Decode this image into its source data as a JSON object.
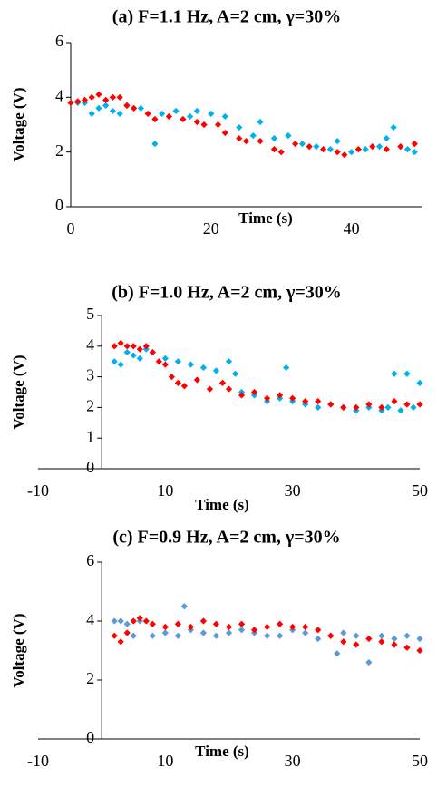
{
  "chart_data": [
    {
      "type": "scatter",
      "title": "(a) F=1.1 Hz, A=2 cm, γ=30%",
      "x_label": "Time (s)",
      "y_label": "Voltage (V)",
      "xlim": [
        0,
        50
      ],
      "xticks": [
        0,
        20,
        40
      ],
      "ylim": [
        0,
        6
      ],
      "yticks": [
        0,
        2,
        4,
        6
      ],
      "series": [
        {
          "color": "#00b0f0",
          "x": [
            1,
            2,
            3,
            4,
            5,
            6,
            7,
            8,
            10,
            12,
            13,
            15,
            17,
            18,
            20,
            22,
            24,
            26,
            27,
            29,
            31,
            33,
            35,
            37,
            38,
            40,
            42,
            44,
            45,
            46,
            48,
            49
          ],
          "values": [
            3.8,
            3.8,
            3.4,
            3.6,
            3.7,
            3.5,
            3.4,
            3.7,
            3.6,
            2.3,
            3.4,
            3.5,
            3.3,
            3.5,
            3.4,
            3.3,
            2.9,
            2.6,
            3.1,
            2.5,
            2.6,
            2.3,
            2.2,
            2.1,
            2.4,
            2.0,
            2.1,
            2.2,
            2.5,
            2.9,
            2.1,
            2.0
          ]
        },
        {
          "color": "#ff0000",
          "x": [
            0,
            1,
            2,
            3,
            4,
            5,
            6,
            7,
            8,
            9,
            11,
            12,
            14,
            16,
            18,
            19,
            21,
            22,
            24,
            25,
            27,
            29,
            30,
            32,
            34,
            36,
            38,
            39,
            41,
            43,
            45,
            47,
            49
          ],
          "values": [
            3.8,
            3.85,
            3.9,
            4.0,
            4.1,
            3.9,
            4.0,
            4.0,
            3.7,
            3.6,
            3.4,
            3.2,
            3.3,
            3.2,
            3.1,
            3.0,
            3.0,
            2.7,
            2.5,
            2.4,
            2.4,
            2.1,
            2.0,
            2.3,
            2.2,
            2.1,
            2.0,
            1.9,
            2.1,
            2.2,
            2.1,
            2.2,
            2.3
          ]
        }
      ]
    },
    {
      "type": "scatter",
      "title": "(b) F=1.0 Hz, A=2 cm, γ=30%",
      "x_label": "Time (s)",
      "y_label": "Voltage (V)",
      "xlim": [
        -10,
        50
      ],
      "xticks": [
        -10,
        10,
        30,
        50
      ],
      "ylim": [
        0,
        5
      ],
      "yticks": [
        0,
        1,
        2,
        3,
        4,
        5
      ],
      "series": [
        {
          "color": "#00b0f0",
          "x": [
            2,
            3,
            4,
            5,
            6,
            7,
            8,
            10,
            12,
            14,
            16,
            18,
            20,
            21,
            22,
            24,
            26,
            28,
            29,
            30,
            32,
            34,
            36,
            38,
            40,
            42,
            44,
            45,
            46,
            47,
            48,
            49,
            50
          ],
          "values": [
            3.5,
            3.4,
            3.8,
            3.7,
            3.6,
            3.9,
            3.8,
            3.6,
            3.5,
            3.4,
            3.3,
            3.2,
            3.5,
            3.1,
            2.5,
            2.4,
            2.2,
            2.3,
            3.3,
            2.2,
            2.1,
            2.0,
            2.1,
            2.0,
            1.9,
            2.0,
            1.9,
            2.0,
            3.1,
            1.9,
            3.1,
            2.0,
            2.8
          ]
        },
        {
          "color": "#ff0000",
          "x": [
            2,
            3,
            4,
            5,
            6,
            7,
            8,
            9,
            10,
            11,
            12,
            13,
            15,
            17,
            19,
            20,
            22,
            24,
            26,
            28,
            30,
            32,
            34,
            36,
            38,
            40,
            42,
            44,
            46,
            48,
            50
          ],
          "values": [
            4.0,
            4.1,
            4.0,
            4.0,
            3.9,
            4.0,
            3.8,
            3.5,
            3.4,
            3.0,
            2.8,
            2.7,
            2.9,
            2.6,
            2.8,
            2.6,
            2.4,
            2.5,
            2.3,
            2.4,
            2.3,
            2.2,
            2.2,
            2.1,
            2.0,
            2.0,
            2.1,
            2.0,
            2.2,
            2.1,
            2.1
          ]
        }
      ]
    },
    {
      "type": "scatter",
      "title": "(c) F=0.9 Hz, A=2 cm, γ=30%",
      "x_label": "Time (s)",
      "y_label": "Voltage (V)",
      "xlim": [
        -10,
        50
      ],
      "xticks": [
        -10,
        10,
        30,
        50
      ],
      "ylim": [
        0,
        6
      ],
      "yticks": [
        0,
        2,
        4,
        6
      ],
      "series": [
        {
          "color": "#5b9bd5",
          "x": [
            2,
            3,
            4,
            5,
            6,
            8,
            10,
            12,
            13,
            14,
            16,
            18,
            20,
            22,
            24,
            26,
            28,
            30,
            32,
            34,
            36,
            37,
            38,
            40,
            42,
            44,
            46,
            48,
            50
          ],
          "values": [
            4.0,
            4.0,
            3.9,
            3.5,
            4.0,
            3.5,
            3.6,
            3.5,
            4.5,
            3.7,
            3.6,
            3.5,
            3.6,
            3.7,
            3.6,
            3.5,
            3.5,
            3.7,
            3.6,
            3.4,
            3.5,
            2.9,
            3.6,
            3.5,
            2.6,
            3.5,
            3.4,
            3.5,
            3.4
          ]
        },
        {
          "color": "#ff0000",
          "x": [
            2,
            3,
            4,
            5,
            6,
            7,
            8,
            10,
            12,
            14,
            16,
            18,
            20,
            22,
            24,
            26,
            28,
            30,
            32,
            34,
            36,
            38,
            40,
            42,
            44,
            46,
            48,
            50
          ],
          "values": [
            3.5,
            3.3,
            3.6,
            4.0,
            4.1,
            4.0,
            3.9,
            3.8,
            3.9,
            3.8,
            4.0,
            3.9,
            3.8,
            3.9,
            3.7,
            3.8,
            3.9,
            3.8,
            3.8,
            3.7,
            3.5,
            3.3,
            3.2,
            3.4,
            3.3,
            3.2,
            3.1,
            3.0
          ]
        }
      ]
    }
  ]
}
